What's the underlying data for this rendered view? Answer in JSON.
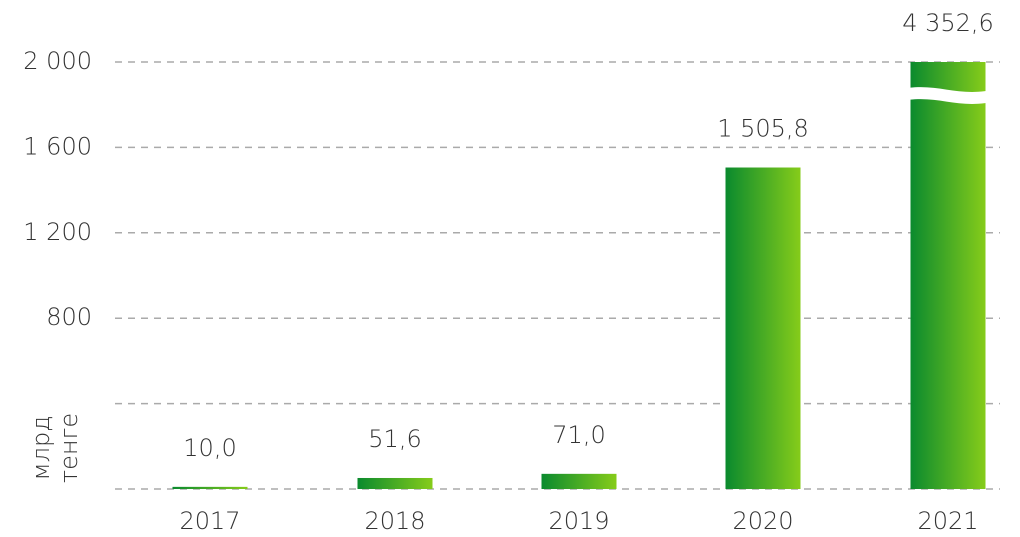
{
  "chart_data": {
    "type": "bar",
    "y_label": [
      "млрд",
      "тенге"
    ],
    "categories": [
      "2017",
      "2018",
      "2019",
      "2020",
      "2021"
    ],
    "values": [
      10.0,
      51.6,
      71.0,
      1505.8,
      4352.6
    ],
    "value_labels": [
      "10,0",
      "51,6",
      "71,0",
      "1 505,8",
      "4 352,6"
    ],
    "color": [
      "#0a8a2e",
      "#86cc1a"
    ],
    "ylim": [
      0,
      2000
    ],
    "yticks": [
      {
        "value": 0
      },
      {
        "value": 400
      },
      800,
      {
        "value": 1200,
        "label": "1 200"
      },
      {
        "value": 1600,
        "label": "1 600"
      },
      {
        "value": 2000,
        "label": "2 000"
      }
    ],
    "grid": true
  }
}
